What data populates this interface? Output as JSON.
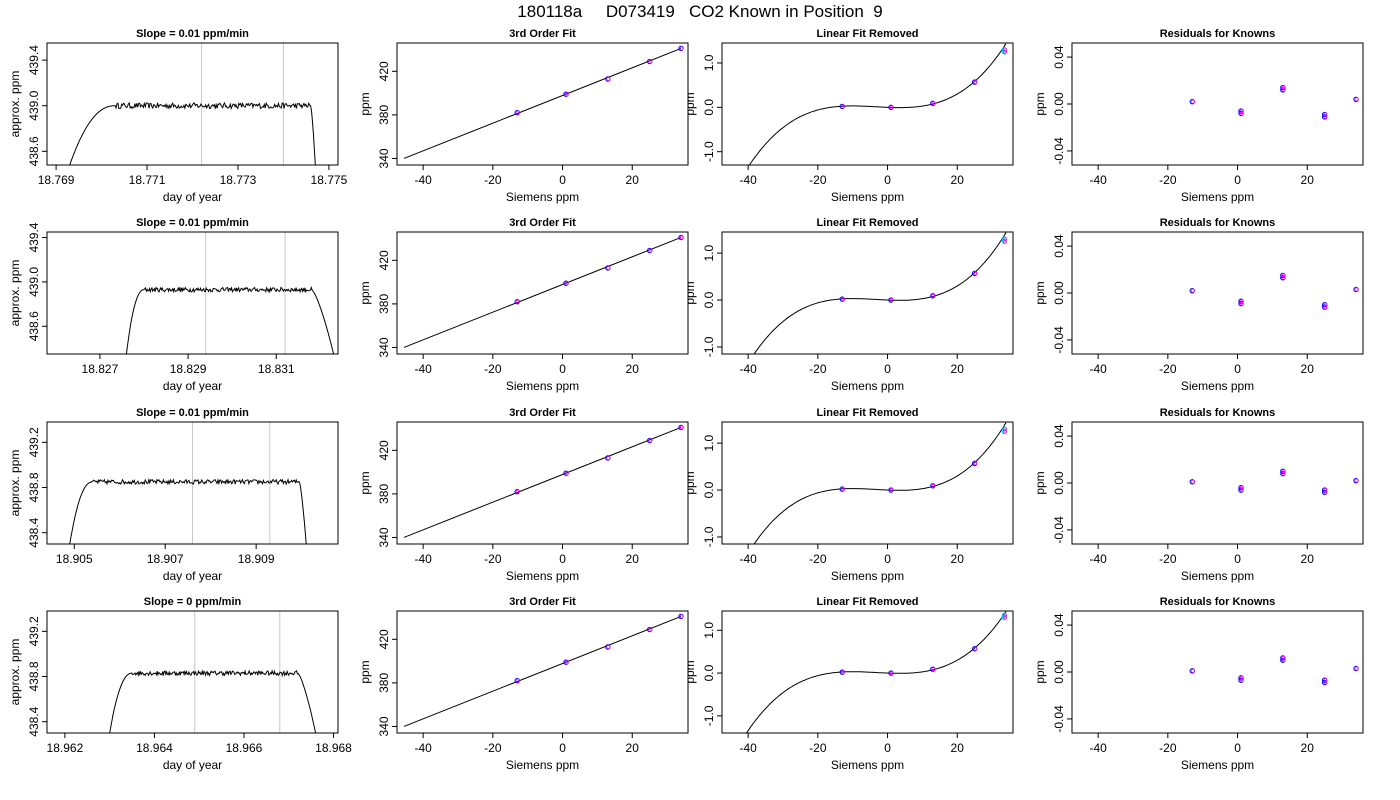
{
  "figure": {
    "title": "180118a     D073419   CO2 Known in Position  9"
  },
  "chart_data": [
    {
      "type": "line",
      "title": "Slope =  0.01  ppm/min",
      "xlabel": "day of year",
      "ylabel": "approx. ppm",
      "xlim": [
        18.7688,
        18.7752
      ],
      "ylim": [
        438.48,
        439.55
      ],
      "xticks": [
        "18.769",
        "18.771",
        "18.773",
        "18.775"
      ],
      "yticks": [
        "438.6",
        "439.0",
        "439.4"
      ],
      "vlines": [
        18.7722,
        18.774
      ],
      "trace": {
        "x0": 18.7693,
        "rise_end": 18.7703,
        "fall_start": 18.7746,
        "x1": 18.7747,
        "level": 439.0,
        "low": 438.48,
        "noise": 0.025
      }
    },
    {
      "type": "scatter",
      "title": "3rd Order Fit",
      "xlabel": "Siemens ppm",
      "ylabel": "ppm",
      "xlim": [
        -47.5,
        36
      ],
      "ylim": [
        334,
        446
      ],
      "xticks": [
        "-40",
        "-20",
        "0",
        "20"
      ],
      "yticks": [
        "340",
        "380",
        "420"
      ],
      "points": [
        [
          -13,
          382
        ],
        [
          1,
          399
        ],
        [
          13,
          413
        ],
        [
          25,
          429
        ],
        [
          34,
          441
        ]
      ],
      "line": [
        [
          -45.5,
          340
        ],
        [
          34,
          441
        ]
      ]
    },
    {
      "type": "scatter",
      "title": "Linear Fit Removed",
      "xlabel": "Siemens ppm",
      "ylabel": "ppm",
      "xlim": [
        -47.5,
        36
      ],
      "ylim": [
        -1.3,
        1.45
      ],
      "xticks": [
        "-40",
        "-20",
        "0",
        "20"
      ],
      "yticks": [
        "-1.0",
        "0.0",
        "1.0"
      ],
      "points": [
        [
          -13,
          0.02
        ],
        [
          1,
          0.0
        ],
        [
          13,
          0.09
        ],
        [
          25,
          0.57
        ],
        [
          33.5,
          1.25
        ],
        [
          33.5,
          1.3
        ]
      ],
      "curve_coeffs": [
        0.00345,
        -0.0015,
        7.5e-05,
        3.4e-06
      ]
    },
    {
      "type": "scatter",
      "title": "Residuals for Knowns",
      "xlabel": "Siemens ppm",
      "ylabel": "ppm",
      "xlim": [
        -47.5,
        36
      ],
      "ylim": [
        -0.052,
        0.052
      ],
      "xticks": [
        "-40",
        "-20",
        "0",
        "20"
      ],
      "yticks": [
        "-0.04",
        "0.00",
        "0.04"
      ],
      "points": [
        [
          -13,
          0.002
        ],
        [
          1,
          -0.006
        ],
        [
          1,
          -0.008
        ],
        [
          13,
          0.012
        ],
        [
          13,
          0.014
        ],
        [
          25,
          -0.009
        ],
        [
          25,
          -0.011
        ],
        [
          34,
          0.004
        ]
      ]
    },
    {
      "type": "line",
      "title": "Slope =  0.01  ppm/min",
      "xlabel": "day of year",
      "ylabel": "approx. ppm",
      "xlim": [
        18.8258,
        18.8324
      ],
      "ylim": [
        438.35,
        439.45
      ],
      "xticks": [
        "18.827",
        "18.829",
        "18.831"
      ],
      "yticks": [
        "438.6",
        "439.0",
        "439.4"
      ],
      "vlines": [
        18.8294,
        18.8312
      ],
      "trace": {
        "x0": 18.8276,
        "rise_end": 18.828,
        "fall_start": 18.8318,
        "x1": 18.8323,
        "level": 438.93,
        "low": 438.35,
        "noise": 0.02
      }
    },
    {
      "type": "scatter",
      "title": "3rd Order Fit",
      "xlabel": "Siemens ppm",
      "ylabel": "ppm",
      "xlim": [
        -47.5,
        36
      ],
      "ylim": [
        334,
        446
      ],
      "xticks": [
        "-40",
        "-20",
        "0",
        "20"
      ],
      "yticks": [
        "340",
        "380",
        "420"
      ],
      "points": [
        [
          -13,
          382
        ],
        [
          1,
          399
        ],
        [
          13,
          413
        ],
        [
          25,
          429
        ],
        [
          34,
          441
        ]
      ],
      "line": [
        [
          -45.5,
          340
        ],
        [
          34,
          441
        ]
      ]
    },
    {
      "type": "scatter",
      "title": "Linear Fit Removed",
      "xlabel": "Siemens ppm",
      "ylabel": "ppm",
      "xlim": [
        -47.5,
        36
      ],
      "ylim": [
        -1.15,
        1.45
      ],
      "xticks": [
        "-40",
        "-20",
        "0",
        "20"
      ],
      "yticks": [
        "-1.0",
        "0.0",
        "1.0"
      ],
      "points": [
        [
          -13,
          0.02
        ],
        [
          1,
          0.0
        ],
        [
          13,
          0.09
        ],
        [
          25,
          0.57
        ],
        [
          33.5,
          1.25
        ],
        [
          33.5,
          1.3
        ]
      ],
      "curve_coeffs": [
        0.00345,
        -0.0015,
        7.5e-05,
        3.4e-06
      ]
    },
    {
      "type": "scatter",
      "title": "Residuals for Knowns",
      "xlabel": "Siemens ppm",
      "ylabel": "ppm",
      "xlim": [
        -47.5,
        36
      ],
      "ylim": [
        -0.052,
        0.052
      ],
      "xticks": [
        "-40",
        "-20",
        "0",
        "20"
      ],
      "yticks": [
        "-0.04",
        "0.00",
        "0.04"
      ],
      "points": [
        [
          -13,
          0.002
        ],
        [
          1,
          -0.007
        ],
        [
          1,
          -0.009
        ],
        [
          13,
          0.013
        ],
        [
          13,
          0.015
        ],
        [
          25,
          -0.01
        ],
        [
          25,
          -0.012
        ],
        [
          34,
          0.003
        ]
      ]
    },
    {
      "type": "line",
      "title": "Slope =  0.01  ppm/min",
      "xlabel": "day of year",
      "ylabel": "approx. ppm",
      "xlim": [
        18.9044,
        18.9108
      ],
      "ylim": [
        438.3,
        439.38
      ],
      "xticks": [
        "18.905",
        "18.907",
        "18.909"
      ],
      "yticks": [
        "438.4",
        "438.8",
        "439.2"
      ],
      "vlines": [
        18.9076,
        18.9093
      ],
      "trace": {
        "x0": 18.9049,
        "rise_end": 18.9054,
        "fall_start": 18.90995,
        "x1": 18.9101,
        "level": 438.85,
        "low": 438.3,
        "noise": 0.02
      }
    },
    {
      "type": "scatter",
      "title": "3rd Order Fit",
      "xlabel": "Siemens ppm",
      "ylabel": "ppm",
      "xlim": [
        -47.5,
        36
      ],
      "ylim": [
        334,
        446
      ],
      "xticks": [
        "-40",
        "-20",
        "0",
        "20"
      ],
      "yticks": [
        "340",
        "380",
        "420"
      ],
      "points": [
        [
          -13,
          382
        ],
        [
          1,
          399
        ],
        [
          13,
          413
        ],
        [
          25,
          429
        ],
        [
          34,
          441
        ]
      ],
      "line": [
        [
          -45.5,
          340
        ],
        [
          34,
          441
        ]
      ]
    },
    {
      "type": "scatter",
      "title": "Linear Fit Removed",
      "xlabel": "Siemens ppm",
      "ylabel": "ppm",
      "xlim": [
        -47.5,
        36
      ],
      "ylim": [
        -1.15,
        1.45
      ],
      "xticks": [
        "-40",
        "-20",
        "0",
        "20"
      ],
      "yticks": [
        "-1.0",
        "0.0",
        "1.0"
      ],
      "points": [
        [
          -13,
          0.02
        ],
        [
          1,
          0.0
        ],
        [
          13,
          0.09
        ],
        [
          25,
          0.57
        ],
        [
          33.5,
          1.25
        ],
        [
          33.5,
          1.3
        ]
      ],
      "curve_coeffs": [
        0.00345,
        -0.0015,
        7.5e-05,
        3.4e-06
      ]
    },
    {
      "type": "scatter",
      "title": "Residuals for Knowns",
      "xlabel": "Siemens ppm",
      "ylabel": "ppm",
      "xlim": [
        -47.5,
        36
      ],
      "ylim": [
        -0.052,
        0.052
      ],
      "xticks": [
        "-40",
        "-20",
        "0",
        "20"
      ],
      "yticks": [
        "-0.04",
        "0.00",
        "0.04"
      ],
      "points": [
        [
          -13,
          0.001
        ],
        [
          1,
          -0.004
        ],
        [
          1,
          -0.006
        ],
        [
          13,
          0.008
        ],
        [
          13,
          0.01
        ],
        [
          25,
          -0.006
        ],
        [
          25,
          -0.008
        ],
        [
          34,
          0.002
        ]
      ]
    },
    {
      "type": "line",
      "title": "Slope =  0  ppm/min",
      "xlabel": "day of year",
      "ylabel": "approx. ppm",
      "xlim": [
        18.9616,
        18.9681
      ],
      "ylim": [
        438.3,
        439.38
      ],
      "xticks": [
        "18.962",
        "18.964",
        "18.966",
        "18.968"
      ],
      "yticks": [
        "438.4",
        "438.8",
        "439.2"
      ],
      "vlines": [
        18.9649,
        18.9668
      ],
      "trace": {
        "x0": 18.963,
        "rise_end": 18.9635,
        "fall_start": 18.9672,
        "x1": 18.9676,
        "level": 438.83,
        "low": 438.3,
        "noise": 0.02
      }
    },
    {
      "type": "scatter",
      "title": "3rd Order Fit",
      "xlabel": "Siemens ppm",
      "ylabel": "ppm",
      "xlim": [
        -47.5,
        36
      ],
      "ylim": [
        334,
        446
      ],
      "xticks": [
        "-40",
        "-20",
        "0",
        "20"
      ],
      "yticks": [
        "340",
        "380",
        "420"
      ],
      "points": [
        [
          -13,
          382
        ],
        [
          1,
          399
        ],
        [
          13,
          413
        ],
        [
          25,
          429
        ],
        [
          34,
          441
        ]
      ],
      "line": [
        [
          -45.5,
          340
        ],
        [
          34,
          441
        ]
      ]
    },
    {
      "type": "scatter",
      "title": "Linear Fit Removed",
      "xlabel": "Siemens ppm",
      "ylabel": "ppm",
      "xlim": [
        -47.5,
        36
      ],
      "ylim": [
        -1.4,
        1.45
      ],
      "xticks": [
        "-40",
        "-20",
        "0",
        "20"
      ],
      "yticks": [
        "-1.0",
        "0.0",
        "1.0"
      ],
      "points": [
        [
          -13,
          0.02
        ],
        [
          1,
          0.0
        ],
        [
          13,
          0.09
        ],
        [
          25,
          0.57
        ],
        [
          33.5,
          1.3
        ],
        [
          33.5,
          1.35
        ]
      ],
      "curve_coeffs": [
        0.00345,
        -0.0015,
        7.5e-05,
        3.4e-06
      ]
    },
    {
      "type": "scatter",
      "title": "Residuals for Knowns",
      "xlabel": "Siemens ppm",
      "ylabel": "ppm",
      "xlim": [
        -47.5,
        36
      ],
      "ylim": [
        -0.052,
        0.052
      ],
      "xticks": [
        "-40",
        "-20",
        "0",
        "20"
      ],
      "yticks": [
        "-0.04",
        "0.00",
        "0.04"
      ],
      "points": [
        [
          -13,
          0.001
        ],
        [
          1,
          -0.005
        ],
        [
          1,
          -0.007
        ],
        [
          13,
          0.01
        ],
        [
          13,
          0.012
        ],
        [
          25,
          -0.007
        ],
        [
          25,
          -0.009
        ],
        [
          34,
          0.003
        ]
      ]
    }
  ]
}
